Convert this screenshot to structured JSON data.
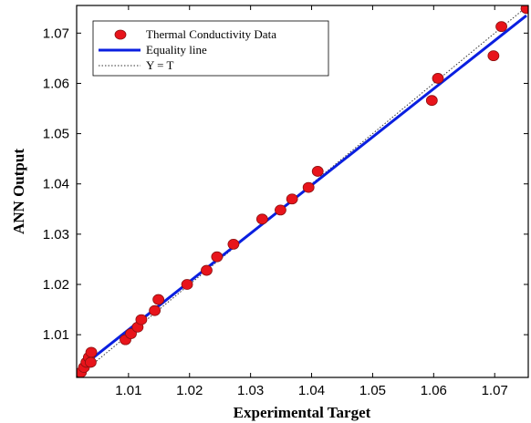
{
  "chart_data": {
    "type": "scatter",
    "title": "",
    "xlabel": "Experimental Target",
    "ylabel": "ANN Output",
    "xlim": [
      1.0015,
      1.0755
    ],
    "ylim": [
      1.0015,
      1.0755
    ],
    "xticks": [
      1.01,
      1.02,
      1.03,
      1.04,
      1.05,
      1.06,
      1.07
    ],
    "yticks": [
      1.01,
      1.02,
      1.03,
      1.04,
      1.05,
      1.06,
      1.07
    ],
    "xtick_labels": [
      "1.01",
      "1.02",
      "1.03",
      "1.04",
      "1.05",
      "1.06",
      "1.07"
    ],
    "ytick_labels": [
      "1.01",
      "1.02",
      "1.03",
      "1.04",
      "1.05",
      "1.06",
      "1.07"
    ],
    "grid": false,
    "legend_position": "top-left",
    "colors": {
      "points": "#e8141b",
      "points_edge": "#8a1010",
      "equality_line": "#0a1fe0",
      "identity_line": "#333333"
    },
    "series": [
      {
        "name": "Thermal Conductivity Data",
        "style": "marker",
        "x": [
          1.0022,
          1.0027,
          1.0031,
          1.0035,
          1.0038,
          1.0039,
          1.0095,
          1.0104,
          1.0115,
          1.0121,
          1.0143,
          1.0149,
          1.0196,
          1.0228,
          1.0245,
          1.0272,
          1.0319,
          1.0349,
          1.0368,
          1.0395,
          1.041,
          1.0597,
          1.0607,
          1.0698,
          1.0711,
          1.0752
        ],
        "y": [
          1.0025,
          1.0035,
          1.0045,
          1.0055,
          1.0045,
          1.0065,
          1.009,
          1.0102,
          1.0115,
          1.013,
          1.0148,
          1.017,
          1.02,
          1.0228,
          1.0255,
          1.028,
          1.033,
          1.0348,
          1.037,
          1.0393,
          1.0425,
          1.0566,
          1.061,
          1.0655,
          1.0713,
          1.0749
        ]
      },
      {
        "name": "Equality line",
        "style": "solid",
        "x": [
          1.0022,
          1.0752
        ],
        "y": [
          1.0035,
          1.0735
        ]
      },
      {
        "name": "Y = T",
        "style": "dotted",
        "x": [
          1.0015,
          1.0755
        ],
        "y": [
          1.0015,
          1.0755
        ]
      }
    ]
  }
}
